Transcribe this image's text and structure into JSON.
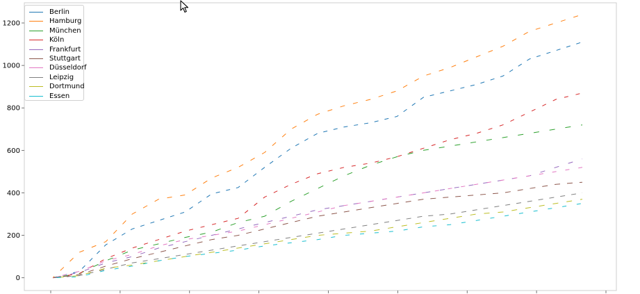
{
  "chart_data": {
    "type": "line",
    "title": "",
    "xlabel": "",
    "ylabel": "",
    "ylim": [
      -60,
      1295
    ],
    "yticks": [
      0,
      200,
      400,
      600,
      800,
      1000,
      1200
    ],
    "ytick_labels": [
      "0",
      "200",
      "400",
      "600",
      "800",
      "1000",
      "1200"
    ],
    "xtick_count": 9,
    "grid": false,
    "legend_position": "top-left",
    "series": [
      {
        "name": "Berlin",
        "color": "#1f77b4",
        "x": [
          0,
          5,
          10,
          15,
          20,
          25,
          30,
          35,
          40,
          45,
          50,
          55,
          60,
          65,
          70,
          75,
          80,
          85,
          90,
          95,
          100
        ],
        "y": [
          0,
          30,
          155,
          230,
          270,
          310,
          395,
          425,
          520,
          610,
          680,
          710,
          730,
          760,
          850,
          880,
          910,
          950,
          1030,
          1070,
          1110
        ]
      },
      {
        "name": "Hamburg",
        "color": "#ff7f0e",
        "x": [
          0,
          5,
          10,
          15,
          20,
          25,
          30,
          35,
          40,
          45,
          50,
          55,
          60,
          65,
          70,
          75,
          80,
          85,
          90,
          95,
          100
        ],
        "y": [
          0,
          120,
          170,
          300,
          370,
          390,
          470,
          520,
          590,
          700,
          770,
          810,
          840,
          880,
          950,
          990,
          1040,
          1090,
          1160,
          1200,
          1240
        ]
      },
      {
        "name": "München",
        "color": "#2ca02c",
        "x": [
          0,
          5,
          10,
          15,
          20,
          25,
          30,
          35,
          40,
          45,
          50,
          55,
          60,
          65,
          70,
          75,
          80,
          85,
          90,
          95,
          100
        ],
        "y": [
          0,
          20,
          80,
          130,
          160,
          190,
          215,
          260,
          290,
          360,
          420,
          480,
          530,
          570,
          600,
          620,
          640,
          660,
          680,
          700,
          720
        ]
      },
      {
        "name": "Köln",
        "color": "#d62728",
        "x": [
          0,
          5,
          10,
          15,
          20,
          25,
          30,
          35,
          40,
          45,
          50,
          55,
          60,
          65,
          70,
          75,
          80,
          85,
          90,
          95,
          100
        ],
        "y": [
          0,
          20,
          90,
          140,
          180,
          220,
          250,
          280,
          380,
          440,
          490,
          520,
          540,
          570,
          610,
          650,
          680,
          720,
          780,
          840,
          870
        ]
      },
      {
        "name": "Frankfurt",
        "color": "#9467bd",
        "x": [
          0,
          5,
          10,
          15,
          20,
          25,
          30,
          35,
          40,
          45,
          50,
          55,
          60,
          65,
          70,
          75,
          80,
          85,
          90,
          95,
          100
        ],
        "y": [
          0,
          25,
          70,
          100,
          140,
          170,
          200,
          230,
          260,
          290,
          320,
          340,
          360,
          380,
          400,
          420,
          440,
          460,
          480,
          520,
          560
        ]
      },
      {
        "name": "Stuttgart",
        "color": "#8c564b",
        "x": [
          0,
          5,
          10,
          15,
          20,
          25,
          30,
          35,
          40,
          45,
          50,
          55,
          60,
          65,
          70,
          75,
          80,
          85,
          90,
          95,
          100
        ],
        "y": [
          0,
          15,
          55,
          90,
          120,
          150,
          180,
          200,
          230,
          260,
          290,
          310,
          330,
          350,
          370,
          380,
          390,
          400,
          420,
          440,
          450
        ]
      },
      {
        "name": "Düsseldorf",
        "color": "#e377c2",
        "x": [
          0,
          5,
          10,
          15,
          20,
          25,
          30,
          35,
          40,
          45,
          50,
          55,
          60,
          65,
          70,
          75,
          80,
          85,
          90,
          95,
          100
        ],
        "y": [
          0,
          30,
          80,
          110,
          150,
          180,
          200,
          220,
          250,
          280,
          310,
          340,
          360,
          380,
          400,
          420,
          440,
          460,
          480,
          500,
          520
        ]
      },
      {
        "name": "Leipzig",
        "color": "#7f7f7f",
        "x": [
          0,
          5,
          10,
          15,
          20,
          25,
          30,
          35,
          40,
          45,
          50,
          55,
          60,
          65,
          70,
          75,
          80,
          85,
          90,
          95,
          100
        ],
        "y": [
          0,
          10,
          40,
          70,
          90,
          110,
          130,
          150,
          170,
          190,
          210,
          230,
          250,
          270,
          290,
          300,
          320,
          340,
          360,
          380,
          400
        ]
      },
      {
        "name": "Dortmund",
        "color": "#bcbd22",
        "x": [
          0,
          5,
          10,
          15,
          20,
          25,
          30,
          35,
          40,
          45,
          50,
          55,
          60,
          65,
          70,
          75,
          80,
          85,
          90,
          95,
          100
        ],
        "y": [
          0,
          10,
          45,
          60,
          80,
          100,
          120,
          140,
          160,
          180,
          200,
          210,
          220,
          240,
          260,
          280,
          300,
          310,
          330,
          350,
          370
        ]
      },
      {
        "name": "Essen",
        "color": "#17becf",
        "x": [
          0,
          5,
          10,
          15,
          20,
          25,
          30,
          35,
          40,
          45,
          50,
          55,
          60,
          65,
          70,
          75,
          80,
          85,
          90,
          95,
          100
        ],
        "y": [
          0,
          5,
          35,
          55,
          80,
          100,
          115,
          130,
          150,
          165,
          180,
          200,
          210,
          220,
          240,
          250,
          270,
          290,
          310,
          330,
          350
        ]
      }
    ]
  }
}
